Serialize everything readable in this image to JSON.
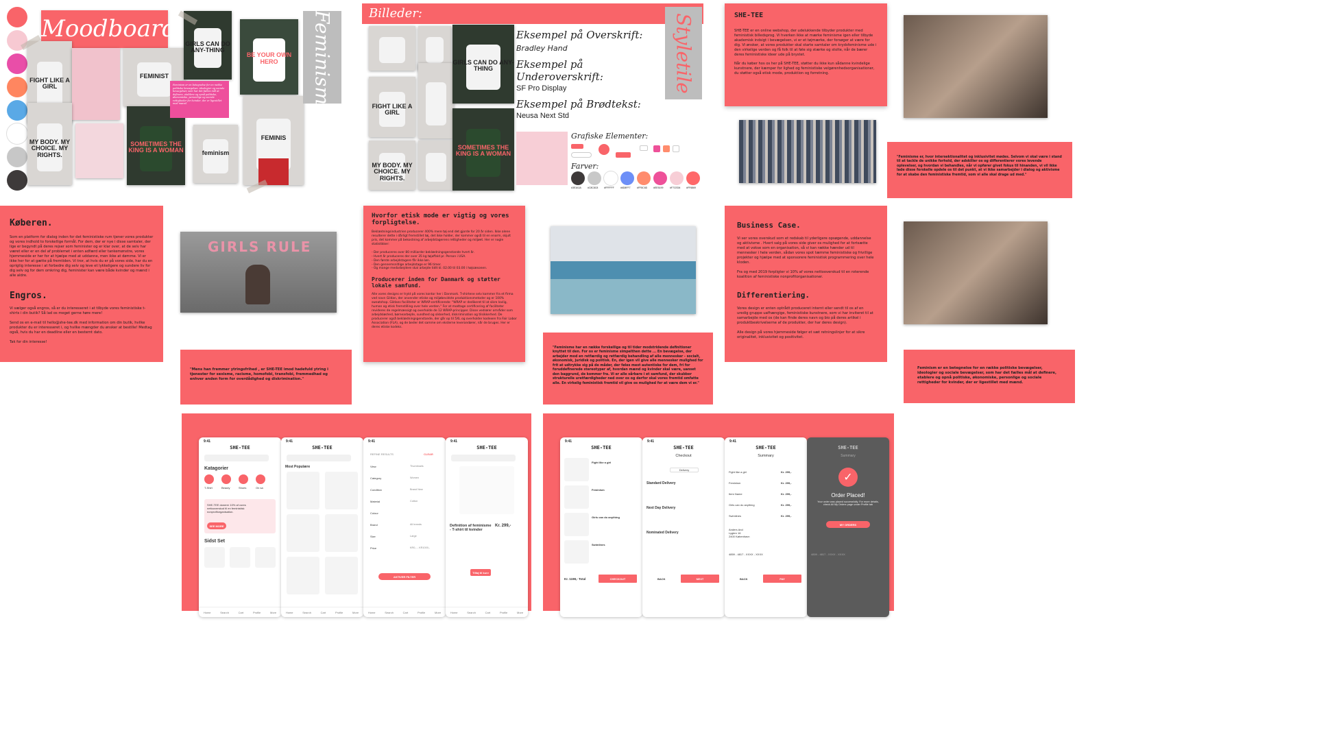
{
  "moodboard": {
    "title": "Moodboard",
    "side_label": "Feminism",
    "quote": "Feminism er en betegnelse for en række politiske bevægelser, ideologier og sociale bevægelser, som har det fælles mål at definere, etablere og opnå politiske, økonomiske, personlige og sociale rettigheder for kvinder, der er ligestillet med mænd.",
    "swatches": [
      "#f96469",
      "#f7c9d2",
      "#e94ea8",
      "#ff8660",
      "#5aa9e6",
      "#ffffff",
      "#c7c7c7",
      "#3e3a3a"
    ],
    "shirts": [
      "FIGHT LIKE A GIRL",
      "FEMINIST",
      "GIRLS CAN DO ANY-THING",
      "BE YOUR OWN HERO",
      "MY BODY. MY CHOICE. MY RIGHTS.",
      "SOMETIMES THE KING IS A WOMAN",
      "feminism",
      "FEMINIS"
    ]
  },
  "styletile": {
    "billeder_label": "Billeder:",
    "side_label": "Styletile",
    "h1_label": "Eksempel på Overskrift:",
    "h1_font": "Bradley Hand",
    "h2_label": "Eksempel på Underoverskrift:",
    "h2_font": "SF Pro Display",
    "body_label": "Eksempel på Brødtekst:",
    "body_font": "Neusa Next Std",
    "elements_label": "Grafiske Elementer:",
    "colors_label": "Farver:",
    "color_codes": [
      "#3E3A3A",
      "#C8C8C8",
      "#FFFFFF",
      "#6D8FF7",
      "#FF8C6D",
      "#EE5199",
      "#F7CED6",
      "#FF6869"
    ],
    "color_values": [
      "#3e3a3a",
      "#c8c8c8",
      "#ffffff",
      "#6d8ff7",
      "#ff8c6d",
      "#ee5199",
      "#f7ced6",
      "#ff6869"
    ]
  },
  "shetee": {
    "title": "SHE-TEE",
    "p1": "SHE-TEE er en online webshop, der udelukkende tilbyder produkter med feministisk billedsprog. Vi hverken ikke at mærke feminisme igen eller tilbyde akademisk indsigt i bevægelsen, vi er et tøjmærke, der forsøger at være for dig. Vi ønsker, at vores produkter skal starte samtaler om krydsfeminisme ude i den virkelige verden og få folk til at føle sig stærke og stolte, når de bærer deres feministiske ideer ude på brystet.",
    "p2": "Når du køber hos os her på SHE-TEE, støtter du ikke kun sådanne kvindelige kunstnere, der kæmper for lighed og feministiske velgørenhedsorganisationer, du støtter også etisk mode, produktion og forretning.",
    "quote_right": "\"Feminisme er, hvor intersektionalitet og inklusivitet mødes. Selvom vi skal være i stand til at tackle de unikke forhold, der adskiller os og differentierer vores levende oplevelser, og hvordan vi behandles, når vi opfører givet fokus til hinanden, vi vil ikke lade disse forskelle opdele os til det punkt, at vi ikke samarbejder i dialog og aktivisme for at skabe den feministiske fremtid, som vi alle skal drage ud med.\""
  },
  "koberen": {
    "title": "Køberen.",
    "text": "Som en platform for dialog inden for det feministiske rum tjener vores produkter og vores indhold to forskellige formål. For dem, der er nye i disse samtaler, der lige er begyndt på deres rejser som feminister og er klar over, at de selv har været eller er en del af problemet i enten adfærd eller tankemønstre, vores hjemmeside er her for at hjælpe med at uddanne, men ikke at dømme. Vi er ikke her for at gætte på fremtiden. Vi tror, at hvis du er på vores side, har du en oprigtig interesse i at forbedre dig selv og leve et lykkeligere og sundere liv for dig selv og for dem omkring dig, feminister kan være både kvinder og mænd i alle aldre.",
    "engros_title": "Engros.",
    "engros_text": "Vi sælger også engros, så er du interesseret i at tilbyde vores feministiske t-shirts i din butik? Så lad os meget gerne høre mere!\n\nSend os en e-mail til hello@she-tee.dk med information om din butik, hvilke produkter du er interesseret i, og hvilke mængder du ønsker at bestille! Medtag også, hvis du har en deadline eller en bestemt dato.\n\nTak for din interesse!"
  },
  "girls_quote": "\"Mens han fremmer ytringsfrihed , er SHE-TEE imod hadefuld ytring i tjenester for sexisme, racisme, homofobi, transfobi, fremmedhad og enhver anden form for overdådighed og diskrimination.\"",
  "etisk": {
    "title": "Hvorfor etisk mode er vigtig og vores forpligtelse.",
    "text": "Beklædningsindustrien producerer 400% mere tøj end det gjorde for 20 år siden. Ikke alene resulterer dette i dårligt fremstillet tøj, det ikke holder, der kommer også til en enorm, skjult pris, det kommer på bekostning af arbejdstagerens rettigheder og miljøet. Her er nogle statistikker:\n\n- Der produceres over 80 milliarder beklædningsgenstande hvert år.\n- Hvert år produceres der over 35 kg tøjaffald pr. Person i USA.\n- Den første arbejdstagere får ikke løn.\n- Den gennemsnitlige arbejdstage er 96 timer.\n- Og mange medarbejdere skal arbejde tidlt kl. 02.00 til 03.00 i højsæsonen.",
    "subtitle": "Producerer inden for Danmark og støtter lokale samfund.",
    "text2": "Alle vores designs er trykt på vores kontor her i Danmark. T-shirtene selv kommer fra et firma ved navn Gildan, der anvender etiske og miljøbevidste produktionsmetoder og er 100% sweatshop. Gildans faciliteter er WRAP-certificerede: \"WRAP er dedikeret til at sikre lovlig, human og etisk fremstilling over hele verden.\" For at modtage certificering af faciliteter revideres de regelmæssigt og overholde de 12 WRAP-principper. Disse vedrører områder som arbejdsløshed, børnearbejde, sundhed og sikkerhed, diskrimination og tilsikkerhed. De producerer også beklædningsgenstande, der går op til 5XL og overholder kodexen fra Fair Labor Association (FLA), og de beder det samme om eksterne leverandører, når de bruges. Her er deres etiske kodeks."
  },
  "factory_quote": "\"Feminisme har en række forskellige og til tider modstridende definitioner knyttet til den. For os er feminisme simpelthen dette ... En bevægelse, der arbejder mod en retfærdig og retfærdig behandling af alle mennesker - socialt, økonomisk, juridisk og politisk. En, der igen vil give alle mennesker mulighed for frit at udtrykke sig på de måder, der føles mest autentiske for dem, fri for foruddefinerede stereotyper af, hvordan mænd og kvinder skal være, uanset den baggrund, de kommer fra. Vi er alle sårbare i et samfund, der skubber strukturelle uretfærdigheder ned over os og derfor skal vores fremtid omfatte alle. En virkelig feministisk fremtid vil give os mulighed for at være dem vi er.\"",
  "business": {
    "title": "Business Case.",
    "text": "Vi ser vores overskud som et redskab til yderligere opsøgende, uddannelse og aktivisme . Hvert salg på vores side giver os mulighed for at fortsætte med at vokse som en organisation, så vi kan række hænder ud til mennesker i hele verden, sådan vores spot tæmme feministiske og frivillige projekter og hjælpe med at sponsorere feministisk programmering over hele kloden.\n\nFra og med 2019 forpligter vi 10% af vores nettooverskud til en roterende koalition af feministiske nonprofitorganisationer.",
    "diff_title": "Differentiering.",
    "diff_text": "Vores design er enten optrådt produceret internt eller sendt til os af en uredig gruppe uafhængige, feministiske kunstnere, som vi har inviteret til at samarbejde med os (de kan finde deres navn og bio på deres artikel i produktbeskrivelserne af de produkter, der har deres design).\n\nAlle design på vores hjemmeside følger et sæt retningslinjer for at sikre originalitet, inklusivitet og positivitet."
  },
  "app": {
    "brand": "SHE-TEE",
    "time": "9:41",
    "categories_title": "Katagorier",
    "categories": [
      "T-Shirt",
      "Beauty",
      "Shoes",
      "On sa"
    ],
    "banner_text": "SHE-TEE donerer 10% af vores nettooverskud til en feministisk nonprofitorganisation.",
    "see_more": "SEE MORE",
    "seen_title": "Sidst Set",
    "most_popular": "Most Populære",
    "refine": "REFINE RESULTS",
    "clear": "CLEAR",
    "filters": [
      "View",
      "Category",
      "Condition",
      "Material",
      "Colour",
      "Brand",
      "Size",
      "Price"
    ],
    "filter_values": [
      "Thumbnails",
      "Women",
      "Brand New",
      "Cotton",
      "",
      "All brands",
      "Large",
      "KR0,- - KR1000,-"
    ],
    "activate_filter": "AKTIVER FILTER",
    "product_title": "Definition af feminisme - T-shirt til kvinder",
    "product_price": "Kr. 299,-",
    "add_cart": "Tilføj til kurv",
    "nav": [
      "Home",
      "Search",
      "Cart",
      "Profile",
      "More"
    ],
    "cart_items": [
      "Fight like a girl",
      "Feminism",
      "Girls can do anything",
      "Swimlines"
    ],
    "cart_total": "Kr. 1198,- Total",
    "checkout_btn": "CHECKOUT",
    "checkout_title": "Checkout",
    "delivery": "Delivery",
    "standard": "Standard Delivery",
    "next_day": "Next Day Delivery",
    "nominated": "Nominated Delivery",
    "back": "BACK",
    "next": "NEXT",
    "summary_title": "Summary",
    "summary_items": [
      "Fight like a girl",
      "Feminism",
      "Item Name",
      "Girls can do anything",
      "Swimlines"
    ],
    "summary_prices": [
      "Kr. 299,-",
      "Kr. 299,-",
      "Kr. 299,-",
      "Kr. 299,-",
      "Kr. 299,-"
    ],
    "address": "Anders And\nLygten 16\n2400 København",
    "card": "4859 - 4817 - XXXX - XXXX",
    "pay": "PAY",
    "order_placed": "Order Placed!",
    "order_text": "Your order was placed successfully. For more details, check All My Orders page under Profile tab",
    "my_orders": "MY ORDERS"
  }
}
